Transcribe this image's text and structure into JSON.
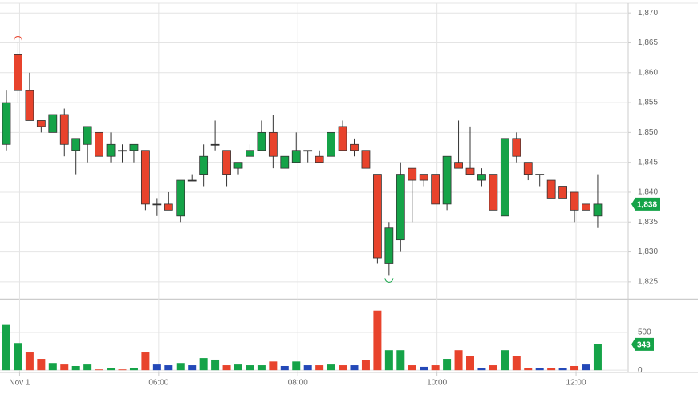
{
  "chart_data": {
    "type": "candlestick",
    "categories": [
      null,
      "Nov 1",
      null,
      null,
      null,
      null,
      null,
      null,
      null,
      null,
      null,
      null,
      null,
      "06:00",
      null,
      null,
      null,
      null,
      null,
      null,
      null,
      null,
      null,
      null,
      null,
      "08:00",
      null,
      null,
      null,
      null,
      null,
      null,
      null,
      null,
      null,
      null,
      null,
      "10:00",
      null,
      null,
      null,
      null,
      null,
      null,
      null,
      null,
      null,
      null,
      null,
      "12:00",
      null,
      null
    ],
    "open": [
      1848,
      1863,
      1857,
      1852,
      1850,
      1853,
      1847,
      1848,
      1850,
      1846,
      1847,
      1847,
      1847,
      1838,
      1838,
      1836,
      1842,
      1843,
      1848,
      1847,
      1844,
      1846,
      1847,
      1850,
      1844,
      1845,
      1847,
      1846,
      1846,
      1851,
      1848,
      1847,
      1843,
      1828,
      1832,
      1844,
      1843,
      1843,
      1838,
      1845,
      1844,
      1842,
      1843,
      1836,
      1849,
      1845,
      1843,
      1842,
      1841,
      1840,
      1838,
      1836
    ],
    "high": [
      1857,
      1865,
      1860,
      1852,
      1853,
      1854,
      1849,
      1851,
      1850,
      1850,
      1848,
      1848,
      1847,
      1839,
      1840,
      1842,
      1843,
      1848,
      1852,
      1847,
      1845,
      1848,
      1852,
      1853,
      1846,
      1850,
      1847,
      1847,
      1850,
      1852,
      1849,
      1847,
      1843,
      1835,
      1845,
      1844,
      1843,
      1843,
      1846,
      1852,
      1851,
      1844,
      1843,
      1849,
      1850,
      1845,
      1843,
      1842,
      1841,
      1840,
      1840,
      1843
    ],
    "low": [
      1847,
      1855,
      1852,
      1850,
      1850,
      1846,
      1843,
      1845,
      1846,
      1845,
      1845,
      1845,
      1837,
      1836,
      1837,
      1835,
      1842,
      1841,
      1847,
      1841,
      1843,
      1846,
      1847,
      1844,
      1844,
      1845,
      1845,
      1845,
      1846,
      1847,
      1846,
      1844,
      1828,
      1826,
      1830,
      1835,
      1841,
      1838,
      1837,
      1844,
      1843,
      1841,
      1837,
      1836,
      1845,
      1842,
      1841,
      1839,
      1839,
      1835,
      1835,
      1834
    ],
    "close": [
      1855,
      1857,
      1852,
      1851,
      1853,
      1848,
      1849,
      1851,
      1846,
      1848,
      1847,
      1848,
      1838,
      1838,
      1837,
      1842,
      1842,
      1846,
      1848,
      1843,
      1845,
      1847,
      1850,
      1846,
      1846,
      1847,
      1847,
      1845,
      1850,
      1847,
      1847,
      1844,
      1829,
      1834,
      1843,
      1842,
      1842,
      1838,
      1846,
      1844,
      1843,
      1843,
      1837,
      1849,
      1846,
      1843,
      1843,
      1839,
      1839,
      1837,
      1837,
      1838
    ],
    "up_color": "#15a348",
    "down_color": "#e8432c",
    "ylim": [
      1822.3,
      1871.5
    ],
    "yticks": [
      {
        "value": 1825,
        "label": "1,825"
      },
      {
        "value": 1830,
        "label": "1,830"
      },
      {
        "value": 1835,
        "label": "1,835"
      },
      {
        "value": 1840,
        "label": "1,840"
      },
      {
        "value": 1845,
        "label": "1,845"
      },
      {
        "value": 1850,
        "label": "1,850"
      },
      {
        "value": 1855,
        "label": "1,855"
      },
      {
        "value": 1860,
        "label": "1,860"
      },
      {
        "value": 1865,
        "label": "1,865"
      },
      {
        "value": 1870,
        "label": "1,870"
      }
    ],
    "last_price_label": "1,838",
    "volume": {
      "values": [
        600,
        360,
        235,
        150,
        95,
        75,
        55,
        75,
        10,
        30,
        10,
        30,
        235,
        75,
        65,
        95,
        65,
        160,
        140,
        65,
        75,
        65,
        65,
        115,
        55,
        115,
        65,
        65,
        75,
        65,
        65,
        130,
        790,
        265,
        265,
        65,
        45,
        65,
        150,
        265,
        190,
        30,
        65,
        265,
        190,
        30,
        30,
        30,
        30,
        55,
        75,
        343
      ],
      "colors": [
        "#15a348",
        "#15a348",
        "#e8432c",
        "#e8432c",
        "#15a348",
        "#e8432c",
        "#15a348",
        "#15a348",
        "#e8432c",
        "#15a348",
        "#e8432c",
        "#15a348",
        "#e8432c",
        "#2449b8",
        "#2449b8",
        "#15a348",
        "#2449b8",
        "#15a348",
        "#15a348",
        "#e8432c",
        "#15a348",
        "#15a348",
        "#15a348",
        "#e8432c",
        "#2449b8",
        "#15a348",
        "#2449b8",
        "#e8432c",
        "#15a348",
        "#e8432c",
        "#2449b8",
        "#e8432c",
        "#e8432c",
        "#15a348",
        "#15a348",
        "#e8432c",
        "#2449b8",
        "#e8432c",
        "#15a348",
        "#e8432c",
        "#e8432c",
        "#2449b8",
        "#e8432c",
        "#15a348",
        "#e8432c",
        "#e8432c",
        "#2449b8",
        "#e8432c",
        "#2449b8",
        "#e8432c",
        "#2449b8",
        "#15a348"
      ],
      "ylim": [
        -30,
        925
      ],
      "yticks": [
        0,
        500
      ]
    },
    "grid": true
  }
}
